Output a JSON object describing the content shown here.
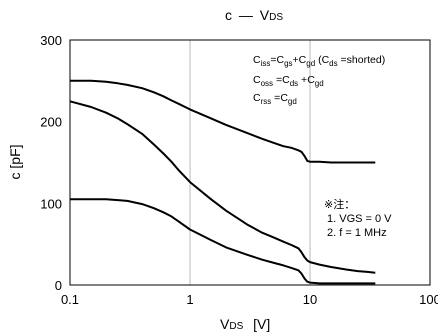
{
  "chart_data": {
    "type": "line",
    "title_main": "c",
    "title_sub": "V",
    "title_sub_small": "DS",
    "xlabel_main": "V",
    "xlabel_sub": "DS",
    "xlabel_unit": "[V]",
    "ylabel": "c [pF]",
    "xscale": "log",
    "xlim": [
      0.1,
      100
    ],
    "ylim": [
      0,
      300
    ],
    "x_ticks": [
      0.1,
      1,
      10,
      100
    ],
    "x_tick_labels": [
      "0.1",
      "1",
      "10",
      "100"
    ],
    "y_ticks": [
      0,
      100,
      200,
      300
    ],
    "y_tick_labels": [
      "0",
      "100",
      "200",
      "300"
    ],
    "grid": "vertical decade lines",
    "series": [
      {
        "id": "ciss",
        "x": [
          0.1,
          0.15,
          0.2,
          0.25,
          0.3,
          0.4,
          0.5,
          0.6,
          0.7,
          0.8,
          1.0,
          1.5,
          2.0,
          3.0,
          4.0,
          5.0,
          6.0,
          7.0,
          8.0,
          8.5,
          9.0,
          9.5,
          10,
          12,
          15,
          20,
          25,
          30,
          35
        ],
        "y": [
          250,
          250,
          249,
          247,
          245,
          241,
          236,
          231,
          226,
          222,
          215,
          204,
          196,
          186,
          179,
          174,
          170,
          168,
          165,
          163,
          158,
          152,
          151,
          151,
          150,
          150,
          150,
          150,
          150
        ]
      },
      {
        "id": "coss",
        "x": [
          0.1,
          0.15,
          0.2,
          0.25,
          0.3,
          0.4,
          0.5,
          0.6,
          0.7,
          0.8,
          1.0,
          1.5,
          2.0,
          3.0,
          4.0,
          5.0,
          6.0,
          7.0,
          8.0,
          8.5,
          9.0,
          9.5,
          10,
          12,
          15,
          20,
          25,
          30,
          35
        ],
        "y": [
          225,
          218,
          211,
          204,
          197,
          185,
          172,
          161,
          151,
          141,
          126,
          105,
          91,
          74,
          64,
          58,
          53,
          49,
          45,
          40,
          34,
          30,
          28,
          25,
          22,
          19,
          17,
          16,
          15
        ]
      },
      {
        "id": "crss",
        "x": [
          0.1,
          0.15,
          0.2,
          0.25,
          0.3,
          0.4,
          0.5,
          0.6,
          0.7,
          0.8,
          1.0,
          1.5,
          2.0,
          3.0,
          4.0,
          5.0,
          6.0,
          7.0,
          8.0,
          8.5,
          9.0,
          9.5,
          10,
          12,
          15,
          20,
          25,
          30,
          35
        ],
        "y": [
          105,
          105,
          105,
          104,
          103,
          99,
          94,
          89,
          84,
          78,
          68,
          55,
          46,
          37,
          31,
          27,
          24,
          21,
          18,
          14,
          8,
          4,
          3,
          2,
          2,
          2,
          2,
          2,
          2
        ]
      }
    ],
    "annotations": {
      "eq1": [
        {
          "t": "C"
        },
        {
          "t": "iss",
          "sub": true
        },
        {
          "t": "=C"
        },
        {
          "t": "gs",
          "sub": true
        },
        {
          "t": "+C"
        },
        {
          "t": "gd",
          "sub": true
        },
        {
          "t": " (C"
        },
        {
          "t": "ds",
          "sub": true
        },
        {
          "t": " =shorted)"
        }
      ],
      "eq2": [
        {
          "t": "C"
        },
        {
          "t": "oss",
          "sub": true
        },
        {
          "t": " =C"
        },
        {
          "t": "ds",
          "sub": true
        },
        {
          "t": " +C"
        },
        {
          "t": "gd",
          "sub": true
        }
      ],
      "eq3": [
        {
          "t": "C"
        },
        {
          "t": "rss",
          "sub": true
        },
        {
          "t": " =C"
        },
        {
          "t": "gd",
          "sub": true
        }
      ],
      "note_title": "※注：",
      "note_lines": [
        "1. VGS = 0 V",
        "2. f = 1 MHz"
      ]
    }
  }
}
